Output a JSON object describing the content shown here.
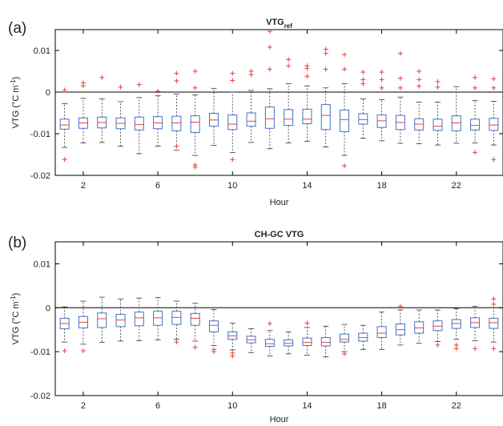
{
  "chart_data": [
    {
      "type": "box",
      "panel_letter": "(a)",
      "title_main": "VTG",
      "title_sub": "ref",
      "xlabel": "Hour",
      "ylabel_main": "VTG (°C m",
      "ylabel_sup": "-1",
      "ylabel_end": ")",
      "xlim": [
        0.5,
        24.5
      ],
      "ylim": [
        -0.02,
        0.015
      ],
      "xticks": [
        "2",
        "6",
        "10",
        "14",
        "18",
        "22"
      ],
      "xtick_values": [
        2,
        6,
        10,
        14,
        18,
        22
      ],
      "yticks": [
        "-0.02",
        "-0.01",
        "0",
        "0.01"
      ],
      "ytick_values": [
        -0.02,
        -0.01,
        0,
        0.01
      ],
      "reference_line": 0,
      "colors": {
        "box": "#4472c4",
        "median": "#e8413a",
        "whisker": "#333333",
        "outlier": "#e8413a"
      },
      "boxes": [
        {
          "hour": 1,
          "q1": -0.0089,
          "median": -0.0079,
          "q3": -0.0065,
          "lo": -0.0133,
          "hi": -0.0028,
          "outliers": [
            0.0005,
            -0.0162
          ]
        },
        {
          "hour": 2,
          "q1": -0.0087,
          "median": -0.0074,
          "q3": -0.0062,
          "lo": -0.0122,
          "hi": -0.0015,
          "outliers": [
            0.0015,
            0.0022
          ]
        },
        {
          "hour": 3,
          "q1": -0.0086,
          "median": -0.0073,
          "q3": -0.006,
          "lo": -0.0121,
          "hi": -0.0016,
          "outliers": [
            0.0035
          ]
        },
        {
          "hour": 4,
          "q1": -0.0088,
          "median": -0.0075,
          "q3": -0.0062,
          "lo": -0.013,
          "hi": -0.0023,
          "outliers": [
            0.0012
          ]
        },
        {
          "hour": 5,
          "q1": -0.0091,
          "median": -0.0078,
          "q3": -0.006,
          "lo": -0.0148,
          "hi": -0.0013,
          "outliers": [
            0.0018
          ]
        },
        {
          "hour": 6,
          "q1": -0.0088,
          "median": -0.0074,
          "q3": -0.0059,
          "lo": -0.013,
          "hi": -0.0009,
          "outliers": [
            0.0002
          ]
        },
        {
          "hour": 7,
          "q1": -0.0093,
          "median": -0.0074,
          "q3": -0.0058,
          "lo": -0.014,
          "hi": -0.0005,
          "outliers": [
            0.0027,
            0.0045,
            -0.013
          ]
        },
        {
          "hour": 8,
          "q1": -0.0097,
          "median": -0.0072,
          "q3": -0.0057,
          "lo": -0.0152,
          "hi": -0.0007,
          "outliers": [
            0.001,
            0.005,
            -0.0175,
            -0.018
          ]
        },
        {
          "hour": 9,
          "q1": -0.0082,
          "median": -0.0067,
          "q3": -0.0051,
          "lo": -0.0128,
          "hi": 0.0009,
          "outliers": []
        },
        {
          "hour": 10,
          "q1": -0.009,
          "median": -0.0077,
          "q3": -0.0055,
          "lo": -0.0145,
          "hi": 0.0,
          "outliers": [
            0.0028,
            0.0045,
            -0.0162
          ]
        },
        {
          "hour": 11,
          "q1": -0.0082,
          "median": -0.007,
          "q3": -0.005,
          "lo": -0.0121,
          "hi": 0.0004,
          "outliers": [
            0.0042,
            0.005
          ]
        },
        {
          "hour": 12,
          "q1": -0.0087,
          "median": -0.0064,
          "q3": -0.0036,
          "lo": -0.0136,
          "hi": 0.0008,
          "outliers": [
            0.0146,
            0.0108,
            0.0055
          ]
        },
        {
          "hour": 13,
          "q1": -0.008,
          "median": -0.0065,
          "q3": -0.0042,
          "lo": -0.0122,
          "hi": 0.002,
          "outliers": [
            0.0078,
            0.0063
          ]
        },
        {
          "hour": 14,
          "q1": -0.0076,
          "median": -0.0065,
          "q3": -0.0041,
          "lo": -0.0118,
          "hi": 0.0015,
          "outliers": [
            0.0063,
            0.0057,
            0.0038
          ]
        },
        {
          "hour": 15,
          "q1": -0.009,
          "median": -0.0056,
          "q3": -0.003,
          "lo": -0.0132,
          "hi": 0.001,
          "outliers": [
            0.0103,
            0.0093,
            0.0055
          ]
        },
        {
          "hour": 16,
          "q1": -0.0095,
          "median": -0.0066,
          "q3": -0.0043,
          "lo": -0.0152,
          "hi": 0.002,
          "outliers": [
            0.009,
            0.0055,
            -0.0177
          ]
        },
        {
          "hour": 17,
          "q1": -0.0077,
          "median": -0.0066,
          "q3": -0.0052,
          "lo": -0.0111,
          "hi": -0.0016,
          "outliers": [
            0.0048,
            0.003,
            0.002
          ]
        },
        {
          "hour": 18,
          "q1": -0.0085,
          "median": -0.0069,
          "q3": -0.0055,
          "lo": -0.0117,
          "hi": -0.0018,
          "outliers": [
            0.0048,
            0.003,
            0.001
          ]
        },
        {
          "hour": 19,
          "q1": -0.009,
          "median": -0.0073,
          "q3": -0.0056,
          "lo": -0.0123,
          "hi": -0.0012,
          "outliers": [
            0.0093,
            0.0033,
            0.001
          ]
        },
        {
          "hour": 20,
          "q1": -0.0091,
          "median": -0.0077,
          "q3": -0.0064,
          "lo": -0.0124,
          "hi": -0.0024,
          "outliers": [
            0.005,
            0.003,
            0.0014
          ]
        },
        {
          "hour": 21,
          "q1": -0.0092,
          "median": -0.0082,
          "q3": -0.0065,
          "lo": -0.0127,
          "hi": -0.0024,
          "outliers": [
            0.0025,
            0.0012
          ]
        },
        {
          "hour": 22,
          "q1": -0.0093,
          "median": -0.0074,
          "q3": -0.0057,
          "lo": -0.0123,
          "hi": 0.0013,
          "outliers": []
        },
        {
          "hour": 23,
          "q1": -0.0091,
          "median": -0.008,
          "q3": -0.0065,
          "lo": -0.0122,
          "hi": -0.002,
          "outliers": [
            0.0035,
            0.001,
            -0.0145
          ]
        },
        {
          "hour": 24,
          "q1": -0.0092,
          "median": -0.0079,
          "q3": -0.0063,
          "lo": -0.0127,
          "hi": -0.0022,
          "outliers": [
            0.0032,
            0.001,
            -0.0162
          ]
        }
      ]
    },
    {
      "type": "box",
      "panel_letter": "(b)",
      "title_main": "CH-GC VTG",
      "title_sub": "",
      "xlabel": "Hour",
      "ylabel_main": "VTG (°C m",
      "ylabel_sup": "-1",
      "ylabel_end": ")",
      "xlim": [
        0.5,
        24.5
      ],
      "ylim": [
        -0.02,
        0.015
      ],
      "xticks": [
        "2",
        "6",
        "10",
        "14",
        "18",
        "22"
      ],
      "xtick_values": [
        2,
        6,
        10,
        14,
        18,
        22
      ],
      "yticks": [
        "-0.02",
        "-0.01",
        "0",
        "0.01"
      ],
      "ytick_values": [
        -0.02,
        -0.01,
        0,
        0.01
      ],
      "reference_line": 0,
      "colors": {
        "box": "#4472c4",
        "median": "#e8413a",
        "whisker": "#333333",
        "outlier": "#e8413a"
      },
      "boxes": [
        {
          "hour": 1,
          "q1": -0.0048,
          "median": -0.0036,
          "q3": -0.0024,
          "lo": -0.0078,
          "hi": 0.0002,
          "outliers": [
            -0.0098
          ]
        },
        {
          "hour": 2,
          "q1": -0.0046,
          "median": -0.0033,
          "q3": -0.002,
          "lo": -0.0083,
          "hi": 0.0015,
          "outliers": [
            -0.0098
          ]
        },
        {
          "hour": 3,
          "q1": -0.0045,
          "median": -0.0025,
          "q3": -0.0012,
          "lo": -0.0079,
          "hi": 0.0024,
          "outliers": []
        },
        {
          "hour": 4,
          "q1": -0.0043,
          "median": -0.0028,
          "q3": -0.0015,
          "lo": -0.0076,
          "hi": 0.002,
          "outliers": []
        },
        {
          "hour": 5,
          "q1": -0.0041,
          "median": -0.0023,
          "q3": -0.001,
          "lo": -0.0075,
          "hi": 0.0022,
          "outliers": []
        },
        {
          "hour": 6,
          "q1": -0.004,
          "median": -0.0023,
          "q3": -0.0008,
          "lo": -0.0073,
          "hi": 0.0023,
          "outliers": []
        },
        {
          "hour": 7,
          "q1": -0.0038,
          "median": -0.0022,
          "q3": -0.0008,
          "lo": -0.0072,
          "hi": 0.0015,
          "outliers": [
            -0.0078
          ]
        },
        {
          "hour": 8,
          "q1": -0.004,
          "median": -0.0024,
          "q3": -0.0013,
          "lo": -0.0076,
          "hi": 0.001,
          "outliers": [
            -0.009
          ]
        },
        {
          "hour": 9,
          "q1": -0.0055,
          "median": -0.004,
          "q3": -0.003,
          "lo": -0.0086,
          "hi": -0.0004,
          "outliers": [
            -0.0095,
            -0.01
          ]
        },
        {
          "hour": 10,
          "q1": -0.0072,
          "median": -0.0064,
          "q3": -0.0055,
          "lo": -0.0096,
          "hi": -0.0035,
          "outliers": [
            -0.0103,
            -0.011
          ]
        },
        {
          "hour": 11,
          "q1": -0.008,
          "median": -0.0073,
          "q3": -0.0065,
          "lo": -0.0102,
          "hi": -0.0048,
          "outliers": []
        },
        {
          "hour": 12,
          "q1": -0.0088,
          "median": -0.0082,
          "q3": -0.0072,
          "lo": -0.011,
          "hi": -0.0052,
          "outliers": [
            -0.0036
          ]
        },
        {
          "hour": 13,
          "q1": -0.0087,
          "median": -0.0081,
          "q3": -0.0073,
          "lo": -0.0105,
          "hi": -0.0055,
          "outliers": []
        },
        {
          "hour": 14,
          "q1": -0.0086,
          "median": -0.0079,
          "q3": -0.0069,
          "lo": -0.0108,
          "hi": -0.0045,
          "outliers": [
            -0.0035
          ]
        },
        {
          "hour": 15,
          "q1": -0.0087,
          "median": -0.0079,
          "q3": -0.0068,
          "lo": -0.0112,
          "hi": -0.0042,
          "outliers": []
        },
        {
          "hour": 16,
          "q1": -0.0078,
          "median": -0.0072,
          "q3": -0.006,
          "lo": -0.01,
          "hi": -0.0038,
          "outliers": [
            -0.0105
          ]
        },
        {
          "hour": 17,
          "q1": -0.0076,
          "median": -0.0068,
          "q3": -0.0058,
          "lo": -0.0095,
          "hi": -0.004,
          "outliers": []
        },
        {
          "hour": 18,
          "q1": -0.0068,
          "median": -0.0058,
          "q3": -0.0043,
          "lo": -0.0095,
          "hi": -0.001,
          "outliers": []
        },
        {
          "hour": 19,
          "q1": -0.0062,
          "median": -0.005,
          "q3": -0.0037,
          "lo": -0.0085,
          "hi": -0.0005,
          "outliers": [
            0.0003
          ]
        },
        {
          "hour": 20,
          "q1": -0.0058,
          "median": -0.0046,
          "q3": -0.0032,
          "lo": -0.0081,
          "hi": -0.0005,
          "outliers": []
        },
        {
          "hour": 21,
          "q1": -0.0052,
          "median": -0.0042,
          "q3": -0.003,
          "lo": -0.0077,
          "hi": -0.0005,
          "outliers": [
            -0.0085
          ]
        },
        {
          "hour": 22,
          "q1": -0.0047,
          "median": -0.0036,
          "q3": -0.0027,
          "lo": -0.0072,
          "hi": -0.0002,
          "outliers": [
            -0.0085,
            -0.0093
          ]
        },
        {
          "hour": 23,
          "q1": -0.0045,
          "median": -0.0034,
          "q3": -0.0023,
          "lo": -0.0075,
          "hi": 0.0003,
          "outliers": [
            -0.0093
          ]
        },
        {
          "hour": 24,
          "q1": -0.0047,
          "median": -0.0034,
          "q3": -0.0024,
          "lo": -0.0078,
          "hi": 0.0,
          "outliers": [
            0.002,
            0.0008,
            -0.0093
          ]
        }
      ]
    }
  ]
}
